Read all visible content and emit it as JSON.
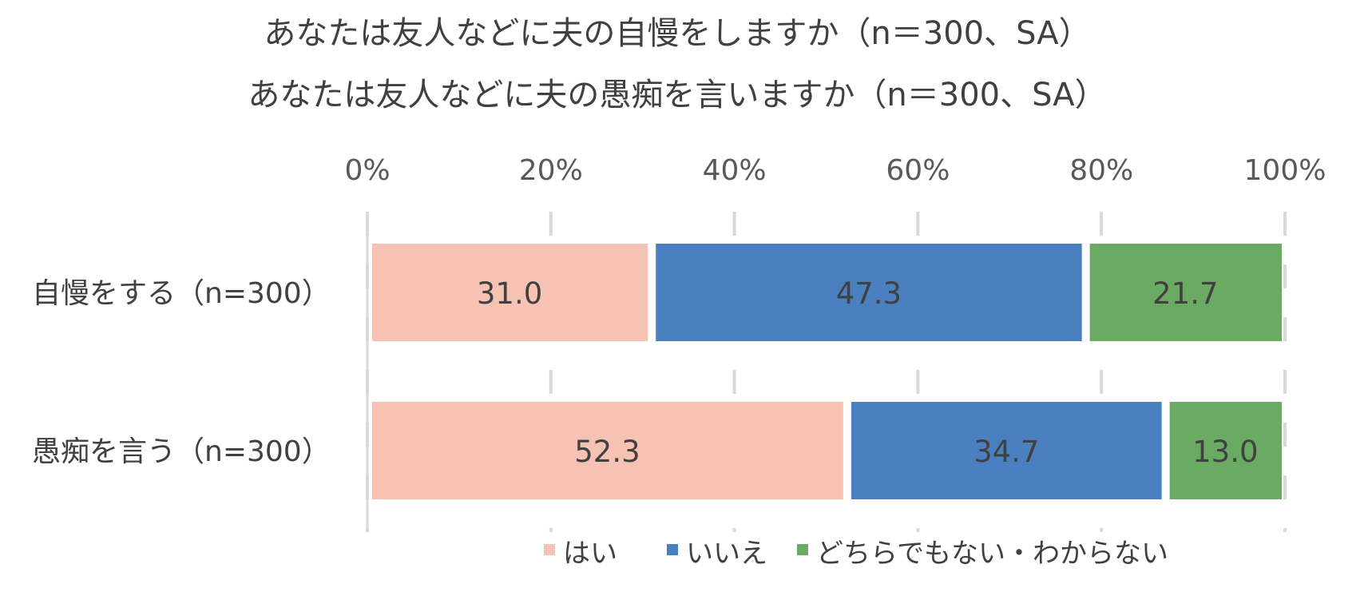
{
  "chart_data": {
    "type": "bar",
    "orientation": "horizontal",
    "stacked": "100%",
    "title": [
      "あなたは友人などに夫の自慢をしますか（n＝300、SA）",
      "あなたは友人などに夫の愚痴を言いますか（n＝300、SA）"
    ],
    "categories": [
      "自慢をする（n=300）",
      "愚痴を言う（n=300）"
    ],
    "series": [
      {
        "name": "はい",
        "color": "#F6C2B4",
        "values": [
          31.0,
          52.3
        ]
      },
      {
        "name": "いいえ",
        "color": "#4A80BF",
        "values": [
          47.3,
          34.7
        ]
      },
      {
        "name": "どちらでもない・わからない",
        "color": "#6BAA63",
        "values": [
          21.7,
          13.0
        ]
      }
    ],
    "xlim": [
      0,
      100
    ],
    "xticks": [
      "0%",
      "20%",
      "40%",
      "60%",
      "80%",
      "100%"
    ],
    "x_axis_position": "top",
    "grid": true,
    "gridline_color": "#D9D9D9",
    "legend": "bottom",
    "data_labels": true
  }
}
